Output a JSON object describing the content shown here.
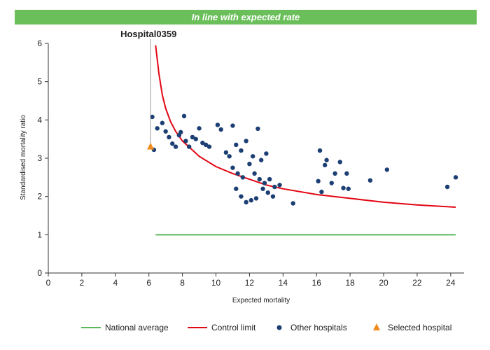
{
  "banner_text": "In line with expected rate",
  "colors": {
    "banner": "#6abf5a",
    "national_average": "#5cb85c",
    "control_limit": "#e30613",
    "other_hospitals": "#1c3f73",
    "selected_hospital": "#f08c1e"
  },
  "chart_data": {
    "type": "scatter",
    "xlabel": "Expected mortality",
    "ylabel": "Standardised mortality ratio",
    "xlim": [
      0,
      24.8
    ],
    "ylim": [
      0,
      6
    ],
    "xticks": [
      0,
      2,
      4,
      6,
      8,
      10,
      12,
      14,
      16,
      18,
      20,
      22,
      24
    ],
    "yticks": [
      0,
      1,
      2,
      3,
      4,
      5,
      6
    ],
    "grid": false,
    "legend_position": "bottom-right",
    "selected_label": "Hospital0359",
    "legend": [
      {
        "name": "National average",
        "kind": "line",
        "color": "#5cb85c"
      },
      {
        "name": "Control limit",
        "kind": "line",
        "color": "#e30613"
      },
      {
        "name": "Other hospitals",
        "kind": "dot",
        "color": "#1c3f73"
      },
      {
        "name": "Selected hospital",
        "kind": "triangle",
        "color": "#f08c1e"
      }
    ],
    "national_average": {
      "x_start": 6.4,
      "x_end": 24.3,
      "y": 1.0
    },
    "control_limit": [
      [
        6.4,
        5.95
      ],
      [
        6.6,
        5.2
      ],
      [
        6.8,
        4.65
      ],
      [
        7.0,
        4.3
      ],
      [
        7.3,
        3.95
      ],
      [
        7.6,
        3.7
      ],
      [
        8.0,
        3.45
      ],
      [
        8.5,
        3.25
      ],
      [
        9.0,
        3.05
      ],
      [
        10.0,
        2.78
      ],
      [
        11.0,
        2.6
      ],
      [
        12.0,
        2.45
      ],
      [
        13.0,
        2.3
      ],
      [
        14.0,
        2.2
      ],
      [
        16.0,
        2.05
      ],
      [
        18.0,
        1.95
      ],
      [
        20.0,
        1.85
      ],
      [
        22.0,
        1.78
      ],
      [
        24.3,
        1.72
      ]
    ],
    "selected_hospital": {
      "name": "Hospital0359",
      "x": 6.1,
      "y": 3.3
    },
    "other_hospitals": [
      [
        6.2,
        4.08
      ],
      [
        6.3,
        3.22
      ],
      [
        6.5,
        3.78
      ],
      [
        6.8,
        3.92
      ],
      [
        7.0,
        3.7
      ],
      [
        7.2,
        3.55
      ],
      [
        7.4,
        3.38
      ],
      [
        7.6,
        3.3
      ],
      [
        7.8,
        3.6
      ],
      [
        7.9,
        3.68
      ],
      [
        8.1,
        4.1
      ],
      [
        8.2,
        3.45
      ],
      [
        8.4,
        3.3
      ],
      [
        8.6,
        3.55
      ],
      [
        8.8,
        3.5
      ],
      [
        9.0,
        3.78
      ],
      [
        9.2,
        3.4
      ],
      [
        9.4,
        3.35
      ],
      [
        9.6,
        3.3
      ],
      [
        10.1,
        3.87
      ],
      [
        10.3,
        3.75
      ],
      [
        10.6,
        3.15
      ],
      [
        10.8,
        3.05
      ],
      [
        11.0,
        3.85
      ],
      [
        11.2,
        3.35
      ],
      [
        11.5,
        3.2
      ],
      [
        11.8,
        3.45
      ],
      [
        12.0,
        2.85
      ],
      [
        12.2,
        3.05
      ],
      [
        12.5,
        3.77
      ],
      [
        12.7,
        2.95
      ],
      [
        12.9,
        2.35
      ],
      [
        13.0,
        3.12
      ],
      [
        13.2,
        2.45
      ],
      [
        13.5,
        2.25
      ],
      [
        13.8,
        2.3
      ],
      [
        14.6,
        1.82
      ],
      [
        11.0,
        2.75
      ],
      [
        11.3,
        2.6
      ],
      [
        11.6,
        2.5
      ],
      [
        12.3,
        2.6
      ],
      [
        12.6,
        2.45
      ],
      [
        12.8,
        2.2
      ],
      [
        13.1,
        2.1
      ],
      [
        13.4,
        2.0
      ],
      [
        11.2,
        2.2
      ],
      [
        11.5,
        2.0
      ],
      [
        11.8,
        1.85
      ],
      [
        12.1,
        1.9
      ],
      [
        12.4,
        1.95
      ],
      [
        16.1,
        2.4
      ],
      [
        16.2,
        3.2
      ],
      [
        16.3,
        2.12
      ],
      [
        16.5,
        2.82
      ],
      [
        16.6,
        2.95
      ],
      [
        16.9,
        2.35
      ],
      [
        17.1,
        2.6
      ],
      [
        17.4,
        2.9
      ],
      [
        17.6,
        2.22
      ],
      [
        17.8,
        2.6
      ],
      [
        17.9,
        2.2
      ],
      [
        19.2,
        2.42
      ],
      [
        20.2,
        2.7
      ],
      [
        23.8,
        2.25
      ],
      [
        24.3,
        2.5
      ]
    ]
  }
}
